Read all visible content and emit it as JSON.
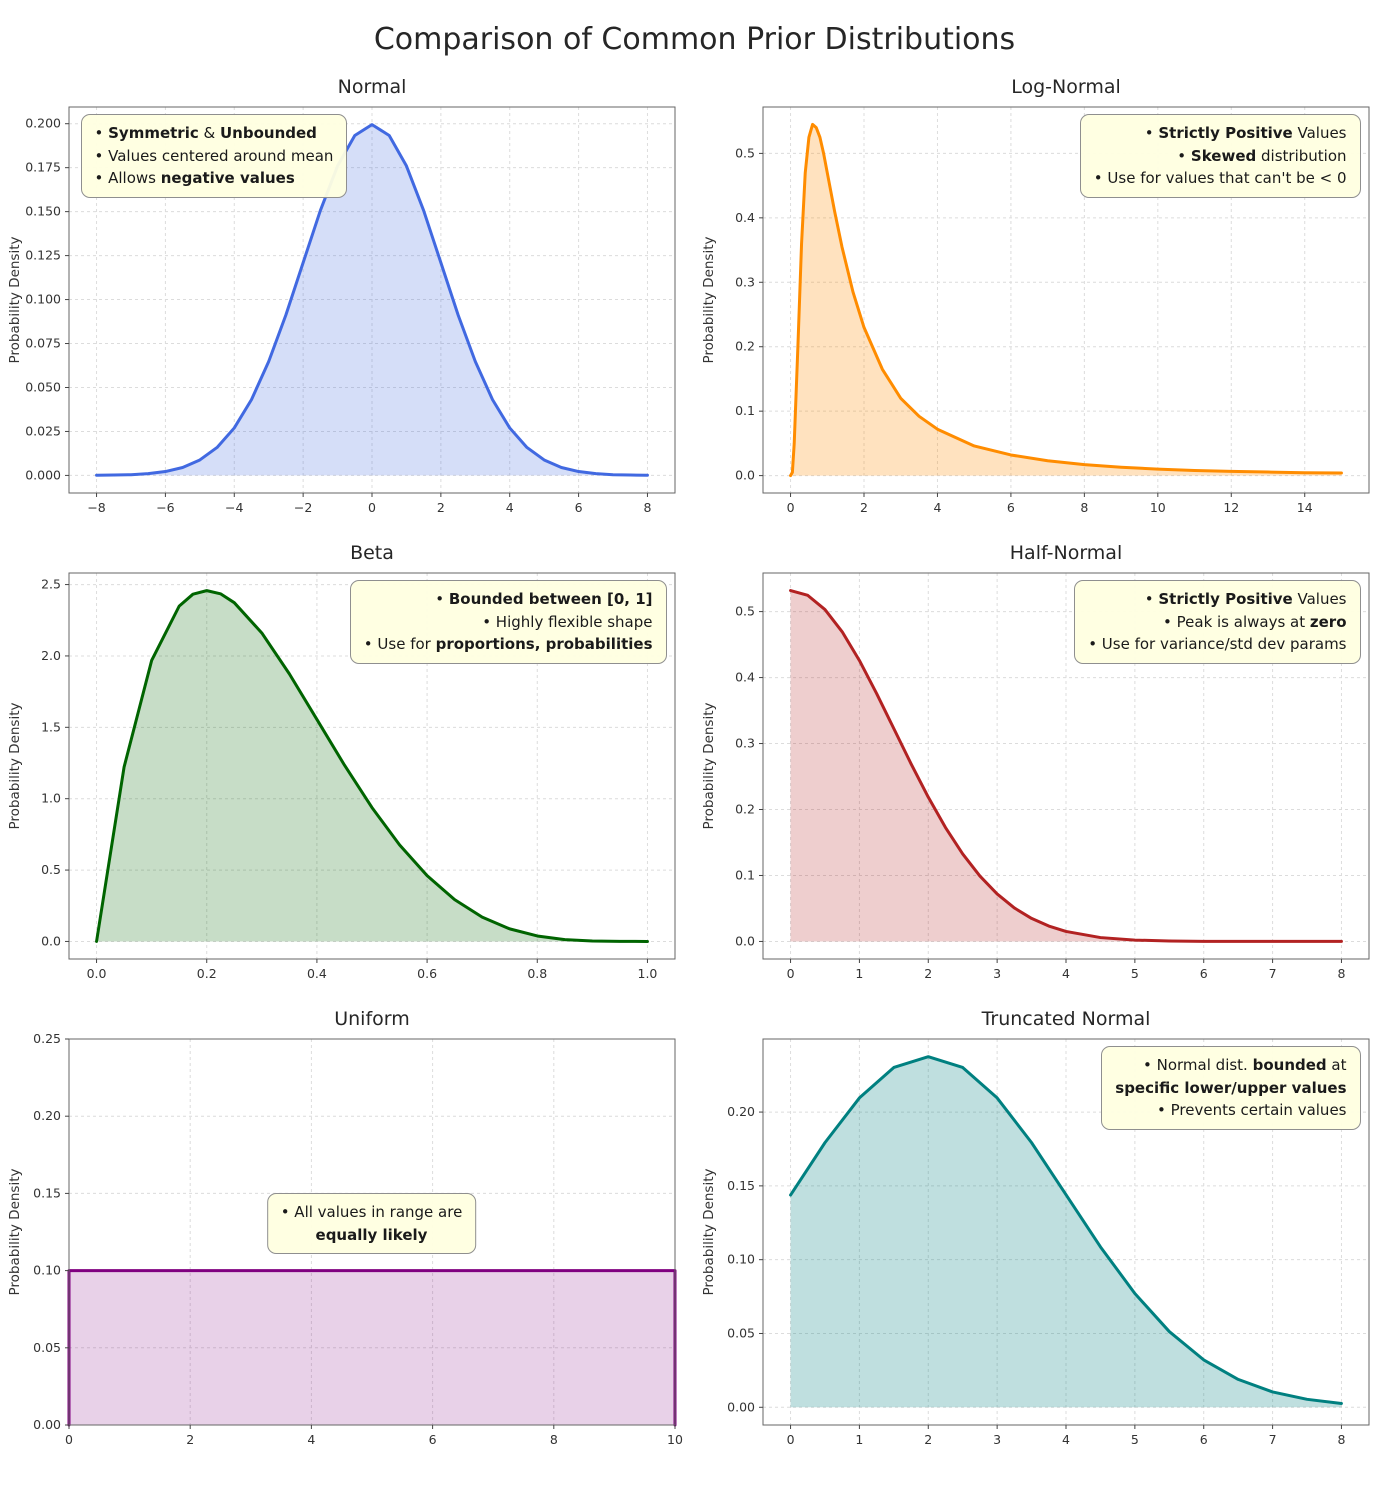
{
  "page_title": "Comparison of Common Prior Distributions",
  "ylabel_shared": "Probability Density",
  "chart_data": [
    {
      "type": "area",
      "title": "Normal",
      "ylabel": "Probability Density",
      "color": "#4169e1",
      "fill": "rgba(65,105,225,0.22)",
      "xlim": [
        -8.8,
        8.8
      ],
      "ylim": [
        -0.01,
        0.2095
      ],
      "xticks": [
        -8,
        -6,
        -4,
        -2,
        0,
        2,
        4,
        6,
        8
      ],
      "xtick_labels": [
        "−8",
        "−6",
        "−4",
        "−2",
        "0",
        "2",
        "4",
        "6",
        "8"
      ],
      "yticks": [
        0,
        0.025,
        0.05,
        0.075,
        0.1,
        0.125,
        0.15,
        0.175,
        0.2
      ],
      "ytick_labels": [
        "0.000",
        "0.025",
        "0.050",
        "0.075",
        "0.100",
        "0.125",
        "0.150",
        "0.175",
        "0.200"
      ],
      "x": [
        -8,
        -7.5,
        -7,
        -6.5,
        -6,
        -5.5,
        -5,
        -4.5,
        -4,
        -3.5,
        -3,
        -2.5,
        -2,
        -1.5,
        -1,
        -0.5,
        0,
        0.5,
        1,
        1.5,
        2,
        2.5,
        3,
        3.5,
        4,
        4.5,
        5,
        5.5,
        6,
        6.5,
        7,
        7.5,
        8
      ],
      "y": [
        0.0001,
        0.0002,
        0.0004,
        0.001,
        0.0022,
        0.0045,
        0.0088,
        0.0159,
        0.027,
        0.0431,
        0.0648,
        0.0913,
        0.121,
        0.1506,
        0.176,
        0.1933,
        0.1995,
        0.1933,
        0.176,
        0.1506,
        0.121,
        0.0913,
        0.0648,
        0.0431,
        0.027,
        0.0159,
        0.0088,
        0.0045,
        0.0022,
        0.001,
        0.0004,
        0.0002,
        0.0001
      ],
      "annotation": {
        "pos": "top-left",
        "align": "left",
        "lines": [
          [
            [
              "• ",
              0
            ],
            [
              "Symmetric",
              1
            ],
            [
              " & ",
              0
            ],
            [
              "Unbounded",
              1
            ]
          ],
          [
            [
              "• Values centered around mean",
              0
            ]
          ],
          [
            [
              "• Allows ",
              0
            ],
            [
              "negative values",
              1
            ]
          ]
        ]
      }
    },
    {
      "type": "area",
      "title": "Log-Normal",
      "ylabel": "Probability Density",
      "color": "#ff8c00",
      "fill": "rgba(255,140,0,0.25)",
      "xlim": [
        -0.75,
        15.75
      ],
      "ylim": [
        -0.027,
        0.572
      ],
      "xticks": [
        0,
        2,
        4,
        6,
        8,
        10,
        12,
        14
      ],
      "xtick_labels": [
        "0",
        "2",
        "4",
        "6",
        "8",
        "10",
        "12",
        "14"
      ],
      "yticks": [
        0,
        0.1,
        0.2,
        0.3,
        0.4,
        0.5
      ],
      "ytick_labels": [
        "0.0",
        "0.1",
        "0.2",
        "0.3",
        "0.4",
        "0.5"
      ],
      "x": [
        0,
        0.05,
        0.1,
        0.2,
        0.3,
        0.4,
        0.5,
        0.6,
        0.7,
        0.8,
        0.9,
        1.0,
        1.2,
        1.4,
        1.7,
        2.0,
        2.5,
        3.0,
        3.5,
        4.0,
        5.0,
        6.0,
        7.0,
        8.0,
        9.0,
        10,
        11,
        12,
        13,
        14,
        15
      ],
      "y": [
        0,
        0.005,
        0.05,
        0.2,
        0.36,
        0.47,
        0.525,
        0.545,
        0.54,
        0.525,
        0.5,
        0.47,
        0.41,
        0.355,
        0.285,
        0.23,
        0.165,
        0.12,
        0.092,
        0.072,
        0.046,
        0.032,
        0.023,
        0.017,
        0.013,
        0.01,
        0.008,
        0.0065,
        0.0055,
        0.0045,
        0.004
      ],
      "annotation": {
        "pos": "top-right",
        "align": "right",
        "lines": [
          [
            [
              "• ",
              0
            ],
            [
              "Strictly Positive",
              1
            ],
            [
              " Values",
              0
            ]
          ],
          [
            [
              "• ",
              0
            ],
            [
              "Skewed",
              1
            ],
            [
              " distribution",
              0
            ]
          ],
          [
            [
              "• Use for values that can't be < 0",
              0
            ]
          ]
        ]
      }
    },
    {
      "type": "area",
      "title": "Beta",
      "ylabel": "Probability Density",
      "color": "#006400",
      "fill": "rgba(0,100,0,0.22)",
      "xlim": [
        -0.05,
        1.05
      ],
      "ylim": [
        -0.123,
        2.581
      ],
      "xticks": [
        0,
        0.2,
        0.4,
        0.6,
        0.8,
        1.0
      ],
      "xtick_labels": [
        "0.0",
        "0.2",
        "0.4",
        "0.6",
        "0.8",
        "1.0"
      ],
      "yticks": [
        0,
        0.5,
        1,
        1.5,
        2,
        2.5
      ],
      "ytick_labels": [
        "0.0",
        "0.5",
        "1.0",
        "1.5",
        "2.0",
        "2.5"
      ],
      "x": [
        0,
        0.05,
        0.1,
        0.15,
        0.175,
        0.2,
        0.225,
        0.25,
        0.3,
        0.35,
        0.4,
        0.45,
        0.5,
        0.55,
        0.6,
        0.65,
        0.7,
        0.75,
        0.8,
        0.85,
        0.9,
        0.95,
        1
      ],
      "y": [
        0,
        1.2218,
        1.9683,
        2.349,
        2.4326,
        2.4576,
        2.4354,
        2.373,
        2.1609,
        1.8743,
        1.5552,
        1.2353,
        0.9375,
        0.6766,
        0.4608,
        0.2926,
        0.1701,
        0.0879,
        0.0384,
        0.0129,
        0.0027,
        0.0002,
        0
      ],
      "annotation": {
        "pos": "top-right",
        "align": "right",
        "lines": [
          [
            [
              "• ",
              0
            ],
            [
              "Bounded between [0, 1]",
              1
            ]
          ],
          [
            [
              "• Highly flexible shape",
              0
            ]
          ],
          [
            [
              "• Use for ",
              0
            ],
            [
              "proportions, probabilities",
              1
            ]
          ]
        ]
      }
    },
    {
      "type": "area",
      "title": "Half-Normal",
      "ylabel": "Probability Density",
      "color": "#b22222",
      "fill": "rgba(178,34,34,0.22)",
      "xlim": [
        -0.4,
        8.4
      ],
      "ylim": [
        -0.0266,
        0.5585
      ],
      "xticks": [
        0,
        1,
        2,
        3,
        4,
        5,
        6,
        7,
        8
      ],
      "xtick_labels": [
        "0",
        "1",
        "2",
        "3",
        "4",
        "5",
        "6",
        "7",
        "8"
      ],
      "yticks": [
        0,
        0.1,
        0.2,
        0.3,
        0.4,
        0.5
      ],
      "ytick_labels": [
        "0.0",
        "0.1",
        "0.2",
        "0.3",
        "0.4",
        "0.5"
      ],
      "x": [
        0,
        0.25,
        0.5,
        0.75,
        1,
        1.25,
        1.5,
        1.75,
        2,
        2.25,
        2.5,
        2.75,
        3,
        3.25,
        3.5,
        3.75,
        4,
        4.5,
        5,
        5.5,
        6,
        6.5,
        7,
        7.5,
        8
      ],
      "y": [
        0.5319,
        0.5246,
        0.5031,
        0.4694,
        0.4259,
        0.3758,
        0.3226,
        0.2693,
        0.2187,
        0.1727,
        0.1327,
        0.0991,
        0.072,
        0.0508,
        0.0349,
        0.0234,
        0.0152,
        0.0059,
        0.0021,
        0.0006,
        0.0002,
        0.0001,
        0.0001,
        0.0001,
        0.0001
      ],
      "annotation": {
        "pos": "top-right",
        "align": "right",
        "lines": [
          [
            [
              "• ",
              0
            ],
            [
              "Strictly Positive",
              1
            ],
            [
              " Values",
              0
            ]
          ],
          [
            [
              "• Peak is always at ",
              0
            ],
            [
              "zero",
              1
            ]
          ],
          [
            [
              "• Use for variance/std dev params",
              0
            ]
          ]
        ]
      }
    },
    {
      "type": "area",
      "title": "Uniform",
      "ylabel": "Probability Density",
      "color": "#800080",
      "fill": "rgba(128,0,128,0.18)",
      "xlim": [
        0,
        10
      ],
      "ylim": [
        0,
        0.25
      ],
      "xticks": [
        0,
        2,
        4,
        6,
        8,
        10
      ],
      "xtick_labels": [
        "0",
        "2",
        "4",
        "6",
        "8",
        "10"
      ],
      "yticks": [
        0,
        0.05,
        0.1,
        0.15,
        0.2,
        0.25
      ],
      "ytick_labels": [
        "0.00",
        "0.05",
        "0.10",
        "0.15",
        "0.20",
        "0.25"
      ],
      "x": [
        0,
        0,
        10,
        10
      ],
      "y": [
        0,
        0.1,
        0.1,
        0
      ],
      "annotation": {
        "pos": "center",
        "align": "center",
        "lines": [
          [
            [
              "• All values in range are",
              0
            ]
          ],
          [
            [
              "equally likely",
              1
            ]
          ]
        ]
      }
    },
    {
      "type": "area",
      "title": "Truncated Normal",
      "ylabel": "Probability Density",
      "color": "#008080",
      "fill": "rgba(0,128,128,0.25)",
      "xlim": [
        -0.4,
        8.4
      ],
      "ylim": [
        -0.012,
        0.2495
      ],
      "xticks": [
        0,
        1,
        2,
        3,
        4,
        5,
        6,
        7,
        8
      ],
      "xtick_labels": [
        "0",
        "1",
        "2",
        "3",
        "4",
        "5",
        "6",
        "7",
        "8"
      ],
      "yticks": [
        0,
        0.05,
        0.1,
        0.15,
        0.2
      ],
      "ytick_labels": [
        "0.00",
        "0.05",
        "0.10",
        "0.15",
        "0.20"
      ],
      "x": [
        0,
        0.5,
        1,
        1.5,
        2,
        2.5,
        3,
        3.5,
        4,
        4.5,
        5,
        5.5,
        6,
        6.5,
        7,
        7.5,
        8
      ],
      "y": [
        0.1438,
        0.1793,
        0.2096,
        0.2302,
        0.2375,
        0.2302,
        0.2096,
        0.1793,
        0.144,
        0.1087,
        0.0771,
        0.0513,
        0.0321,
        0.0189,
        0.0104,
        0.0054,
        0.0026
      ],
      "annotation": {
        "pos": "top-right",
        "align": "right",
        "lines": [
          [
            [
              "• Normal dist. ",
              0
            ],
            [
              "bounded",
              1
            ],
            [
              " at",
              0
            ]
          ],
          [
            [
              "specific lower/upper values",
              1
            ]
          ],
          [
            [
              "• Prevents certain values",
              0
            ]
          ]
        ]
      }
    }
  ]
}
